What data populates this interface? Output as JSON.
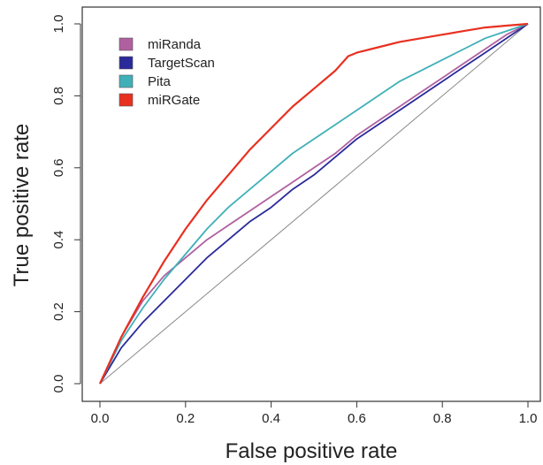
{
  "chart_data": {
    "type": "line",
    "title": "",
    "xlabel": "False positive rate",
    "ylabel": "True positive rate",
    "xlim": [
      0,
      1
    ],
    "ylim": [
      0,
      1
    ],
    "xticks": [
      "0.0",
      "0.2",
      "0.4",
      "0.6",
      "0.8",
      "1.0"
    ],
    "yticks": [
      "0.0",
      "0.2",
      "0.4",
      "0.6",
      "0.8",
      "1.0"
    ],
    "grid": false,
    "legend_position": "top-left",
    "diagonal_reference": {
      "x": [
        0,
        1
      ],
      "y": [
        0,
        1
      ],
      "color": "#888888"
    },
    "series": [
      {
        "name": "miRanda",
        "color": "#b060a0",
        "x": [
          0,
          0.05,
          0.1,
          0.15,
          0.2,
          0.25,
          0.3,
          0.35,
          0.4,
          0.45,
          0.5,
          0.55,
          0.6,
          0.65,
          0.7,
          0.75,
          0.8,
          0.85,
          0.9,
          0.95,
          1.0
        ],
        "y": [
          0,
          0.13,
          0.23,
          0.3,
          0.35,
          0.4,
          0.44,
          0.48,
          0.52,
          0.56,
          0.6,
          0.64,
          0.69,
          0.73,
          0.77,
          0.81,
          0.85,
          0.89,
          0.93,
          0.97,
          1.0
        ]
      },
      {
        "name": "TargetScan",
        "color": "#2a2a9a",
        "x": [
          0,
          0.05,
          0.1,
          0.15,
          0.2,
          0.25,
          0.3,
          0.35,
          0.4,
          0.45,
          0.5,
          0.55,
          0.6,
          0.65,
          0.7,
          0.75,
          0.8,
          0.85,
          0.9,
          0.95,
          1.0
        ],
        "y": [
          0,
          0.1,
          0.17,
          0.23,
          0.29,
          0.35,
          0.4,
          0.45,
          0.49,
          0.54,
          0.58,
          0.63,
          0.68,
          0.72,
          0.76,
          0.8,
          0.84,
          0.88,
          0.92,
          0.96,
          1.0
        ]
      },
      {
        "name": "Pita",
        "color": "#40b0b8",
        "x": [
          0,
          0.05,
          0.1,
          0.15,
          0.2,
          0.25,
          0.3,
          0.35,
          0.4,
          0.45,
          0.5,
          0.55,
          0.6,
          0.65,
          0.7,
          0.75,
          0.8,
          0.85,
          0.9,
          0.95,
          1.0
        ],
        "y": [
          0,
          0.12,
          0.21,
          0.29,
          0.36,
          0.43,
          0.49,
          0.54,
          0.59,
          0.64,
          0.68,
          0.72,
          0.76,
          0.8,
          0.84,
          0.87,
          0.9,
          0.93,
          0.96,
          0.98,
          1.0
        ]
      },
      {
        "name": "miRGate",
        "color": "#e83020",
        "x": [
          0,
          0.05,
          0.1,
          0.15,
          0.2,
          0.25,
          0.3,
          0.35,
          0.4,
          0.45,
          0.5,
          0.55,
          0.58,
          0.6,
          0.65,
          0.7,
          0.75,
          0.8,
          0.85,
          0.9,
          0.95,
          1.0
        ],
        "y": [
          0,
          0.13,
          0.24,
          0.34,
          0.43,
          0.51,
          0.58,
          0.65,
          0.71,
          0.77,
          0.82,
          0.87,
          0.91,
          0.92,
          0.935,
          0.95,
          0.96,
          0.97,
          0.98,
          0.99,
          0.995,
          1.0
        ]
      }
    ]
  }
}
